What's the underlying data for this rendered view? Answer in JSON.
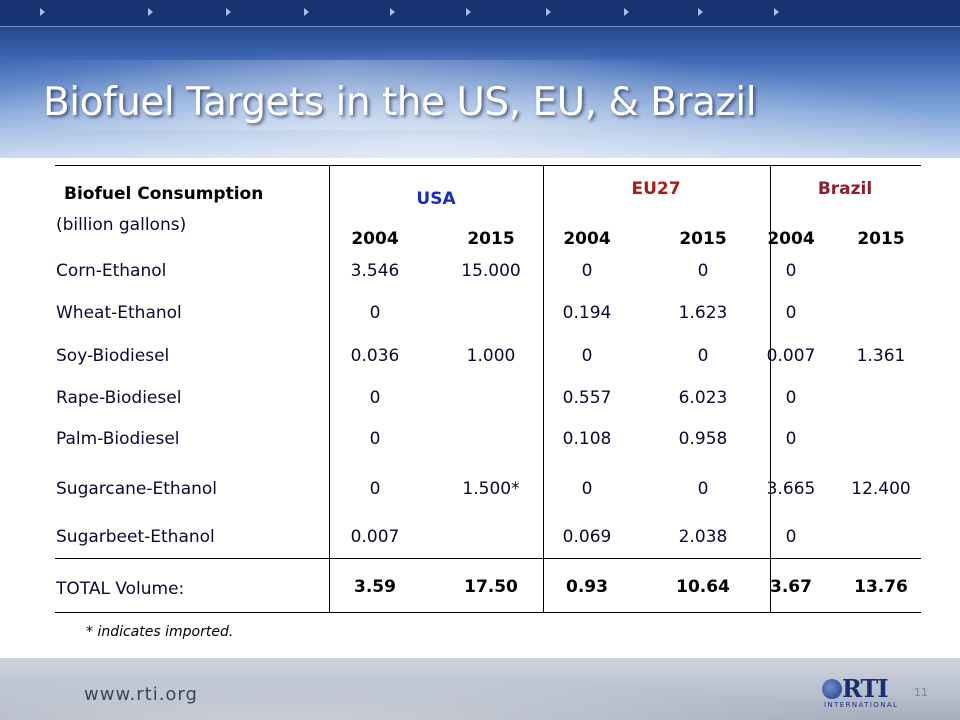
{
  "slide": {
    "title": "Biofuel Targets in the US, EU, & Brazil",
    "footnote": "* indicates imported.",
    "url": "www.rti.org",
    "page_number": "11",
    "logo": {
      "name": "RTI",
      "subtitle": "INTERNATIONAL"
    }
  },
  "table": {
    "header": {
      "corner_title": "Biofuel Consumption",
      "corner_subtitle": "(billion gallons)",
      "regions": [
        "USA",
        "EU27",
        "Brazil"
      ],
      "years": [
        "2004",
        "2015",
        "2004",
        "2015",
        "2004",
        "2015"
      ]
    },
    "rows": [
      {
        "label": "Corn-Ethanol",
        "values": [
          "3.546",
          "15.000",
          "0",
          "0",
          "0",
          ""
        ]
      },
      {
        "label": "Wheat-Ethanol",
        "values": [
          "0",
          "",
          "0.194",
          "1.623",
          "0",
          ""
        ]
      },
      {
        "label": "Soy-Biodiesel",
        "values": [
          "0.036",
          "1.000",
          "0",
          "0",
          "0.007",
          "1.361"
        ]
      },
      {
        "label": "Rape-Biodiesel",
        "values": [
          "0",
          "",
          "0.557",
          "6.023",
          "0",
          ""
        ]
      },
      {
        "label": "Palm-Biodiesel",
        "values": [
          "0",
          "",
          "0.108",
          "0.958",
          "0",
          ""
        ]
      },
      {
        "label": "Sugarcane-Ethanol",
        "values": [
          "0",
          "1.500*",
          "0",
          "0",
          "3.665",
          "12.400"
        ]
      },
      {
        "label": "Sugarbeet-Ethanol",
        "values": [
          "0.007",
          "",
          "0.069",
          "2.038",
          "0",
          ""
        ]
      }
    ],
    "total": {
      "label": "TOTAL Volume:",
      "values": [
        "3.59",
        "17.50",
        "0.93",
        "10.64",
        "3.67",
        "13.76"
      ]
    }
  },
  "colors": {
    "title_text": "#ffffff",
    "usa_header": "#1a2cbf",
    "eu_header": "#b01818",
    "brazil_header": "#8c1f2c"
  }
}
